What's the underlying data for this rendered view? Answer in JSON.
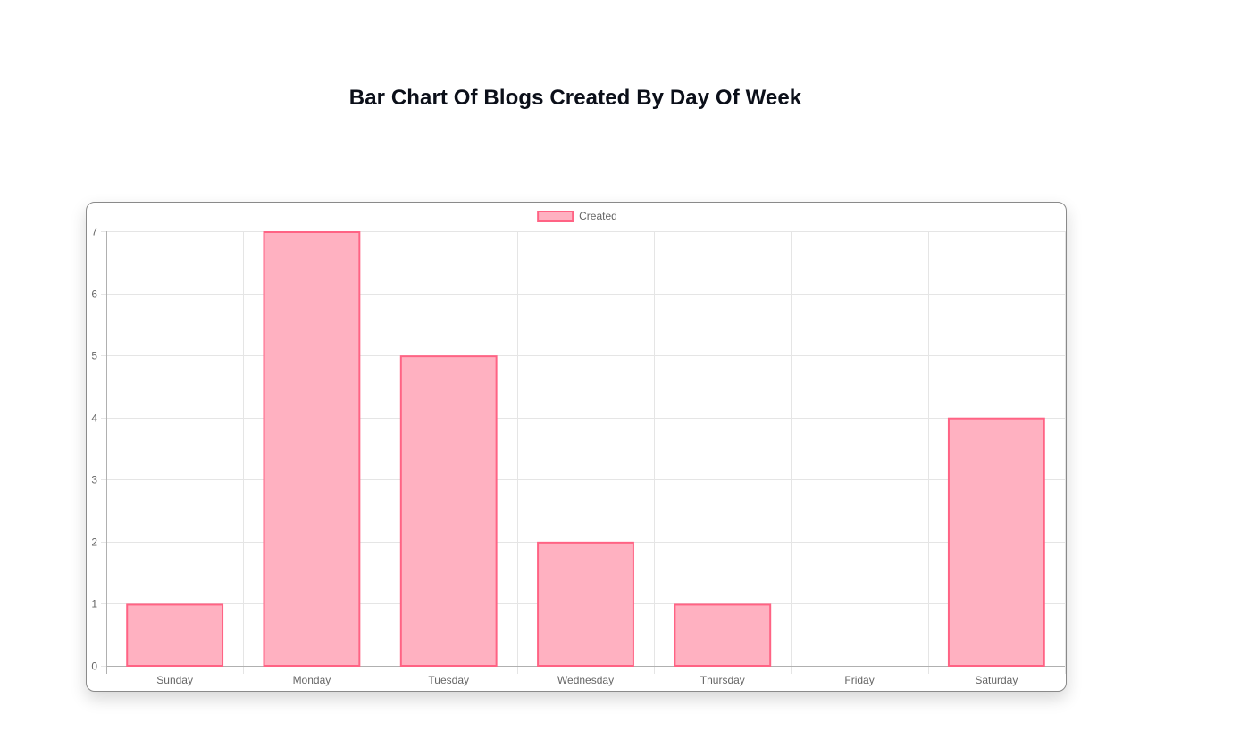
{
  "page": {
    "title": "Bar Chart Of Blogs Created By Day Of Week"
  },
  "chart_data": {
    "type": "bar",
    "categories": [
      "Sunday",
      "Monday",
      "Tuesday",
      "Wednesday",
      "Thursday",
      "Friday",
      "Saturday"
    ],
    "series": [
      {
        "name": "Created",
        "values": [
          1,
          7,
          5,
          2,
          1,
          0,
          4
        ]
      }
    ],
    "ylim": [
      0,
      7
    ],
    "yticks": [
      0,
      1,
      2,
      3,
      4,
      5,
      6,
      7
    ],
    "grid": true,
    "legend_position": "top-center",
    "colors": {
      "bar_fill": "#ffb1c1",
      "bar_border": "#ff6384",
      "grid": "#e5e5e5",
      "axis": "#b0b0b0",
      "tick_text": "#666666"
    }
  }
}
